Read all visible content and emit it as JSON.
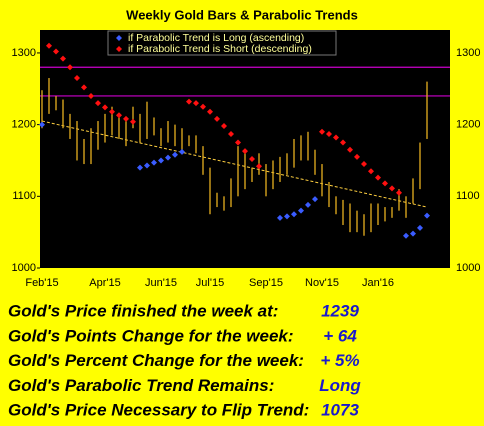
{
  "chart_data": {
    "type": "hilo",
    "title": "Weekly Gold Bars & Parabolic Trends",
    "categories": [
      "Feb'15",
      null,
      null,
      null,
      null,
      null,
      null,
      null,
      null,
      "Apr'15",
      null,
      null,
      null,
      null,
      null,
      null,
      null,
      "Jun'15",
      null,
      null,
      null,
      null,
      null,
      null,
      "Jul'15",
      null,
      null,
      null,
      null,
      null,
      null,
      null,
      "Sep'15",
      null,
      null,
      null,
      null,
      null,
      null,
      null,
      "Nov'15",
      null,
      null,
      null,
      null,
      null,
      null,
      null,
      "Jan'16",
      null,
      null,
      null,
      null,
      null,
      null,
      null
    ],
    "low": [
      1195,
      1215,
      1220,
      1195,
      1180,
      1150,
      1145,
      1145,
      1165,
      1175,
      1185,
      1180,
      1170,
      1195,
      1175,
      1180,
      1185,
      1170,
      1175,
      1170,
      1165,
      1170,
      1160,
      1130,
      1075,
      1085,
      1080,
      1085,
      1100,
      1110,
      1120,
      1130,
      1100,
      1110,
      1120,
      1130,
      1140,
      1150,
      1150,
      1130,
      1100,
      1085,
      1075,
      1060,
      1050,
      1050,
      1045,
      1050,
      1060,
      1065,
      1070,
      1080,
      1070,
      1090,
      1110,
      1180
    ],
    "high": [
      1248,
      1265,
      1240,
      1235,
      1215,
      1205,
      1180,
      1195,
      1205,
      1215,
      1225,
      1210,
      1205,
      1225,
      1215,
      1232,
      1210,
      1195,
      1205,
      1200,
      1195,
      1185,
      1185,
      1170,
      1140,
      1105,
      1100,
      1125,
      1170,
      1160,
      1140,
      1160,
      1145,
      1150,
      1155,
      1160,
      1180,
      1185,
      1190,
      1165,
      1145,
      1120,
      1100,
      1095,
      1090,
      1080,
      1075,
      1090,
      1090,
      1085,
      1085,
      1110,
      1100,
      1125,
      1175,
      1260
    ],
    "bar_color": "#e8b020",
    "series": [
      {
        "name": "if Parabolic Trend is Long (ascending)",
        "color": "#3a5cff",
        "values": [
          1200,
          null,
          null,
          null,
          null,
          null,
          null,
          null,
          null,
          null,
          null,
          null,
          null,
          null,
          1140,
          1143,
          1147,
          1150,
          1154,
          1158,
          1162,
          null,
          null,
          null,
          null,
          null,
          null,
          null,
          null,
          null,
          null,
          null,
          null,
          null,
          1070,
          1072,
          1075,
          1080,
          1088,
          1096,
          null,
          null,
          null,
          null,
          null,
          null,
          null,
          null,
          null,
          null,
          null,
          null,
          1045,
          1048,
          1056,
          1073
        ]
      },
      {
        "name": "if Parabolic Trend is Short (descending)",
        "color": "#ff1010",
        "values": [
          null,
          1310,
          1302,
          1292,
          1280,
          1265,
          1252,
          1240,
          1230,
          1224,
          1218,
          1213,
          1208,
          1204,
          null,
          null,
          null,
          null,
          null,
          null,
          null,
          1232,
          1230,
          1225,
          1218,
          1208,
          1198,
          1187,
          1175,
          1163,
          1152,
          1142,
          null,
          null,
          null,
          null,
          null,
          null,
          null,
          null,
          1190,
          1187,
          1182,
          1175,
          1165,
          1155,
          1145,
          1135,
          1126,
          1118,
          1111,
          1105,
          null,
          null,
          null,
          null
        ]
      }
    ],
    "trend_line": {
      "start": 1205,
      "end": 1085,
      "color": "#ffd040"
    },
    "reference_lines": {
      "values": [
        1280,
        1240
      ],
      "color": "#cc00cc"
    },
    "ylim": [
      1000,
      1332
    ],
    "yticks": [
      1000,
      1100,
      1200,
      1300
    ]
  },
  "table": {
    "rows": [
      [
        "Gold's Price finished the week at:",
        "1239"
      ],
      [
        "Gold's Points Change for the week:",
        "+ 64"
      ],
      [
        "Gold's Percent Change for the week:",
        "+ 5%"
      ],
      [
        "Gold's Parabolic Trend Remains:",
        "Long"
      ],
      [
        "Gold's Price Necessary to Flip Trend:",
        "1073"
      ]
    ]
  }
}
